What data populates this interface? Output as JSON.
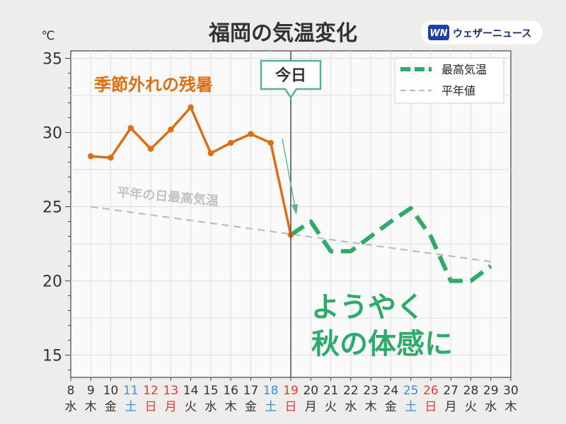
{
  "header": {
    "title": "福岡の気温変化",
    "brand": "ウェザーニュース",
    "logo_mark": "WN"
  },
  "colors": {
    "observed": "#de6e12",
    "forecast": "#2eaa6a",
    "normal": "#bdbdbd",
    "saturday": "#3b8fd9",
    "holiday": "#e03c3c",
    "weekday": "#333333"
  },
  "chart_data": {
    "type": "line",
    "unit_label": "℃",
    "ylim": [
      13.5,
      35.5
    ],
    "yticks": [
      15,
      20,
      25,
      30,
      35
    ],
    "xlim": [
      8,
      30
    ],
    "grid": true,
    "legend_position": "top-right",
    "x_days": [
      {
        "day": "8",
        "dow": "水",
        "kind": "weekday"
      },
      {
        "day": "9",
        "dow": "木",
        "kind": "weekday"
      },
      {
        "day": "10",
        "dow": "金",
        "kind": "weekday"
      },
      {
        "day": "11",
        "dow": "土",
        "kind": "saturday"
      },
      {
        "day": "12",
        "dow": "日",
        "kind": "holiday"
      },
      {
        "day": "13",
        "dow": "月",
        "kind": "holiday"
      },
      {
        "day": "14",
        "dow": "火",
        "kind": "weekday"
      },
      {
        "day": "15",
        "dow": "水",
        "kind": "weekday"
      },
      {
        "day": "16",
        "dow": "木",
        "kind": "weekday"
      },
      {
        "day": "17",
        "dow": "金",
        "kind": "weekday"
      },
      {
        "day": "18",
        "dow": "土",
        "kind": "saturday"
      },
      {
        "day": "19",
        "dow": "日",
        "kind": "holiday"
      },
      {
        "day": "20",
        "dow": "月",
        "kind": "weekday"
      },
      {
        "day": "21",
        "dow": "火",
        "kind": "weekday"
      },
      {
        "day": "22",
        "dow": "水",
        "kind": "weekday"
      },
      {
        "day": "23",
        "dow": "木",
        "kind": "weekday"
      },
      {
        "day": "24",
        "dow": "金",
        "kind": "weekday"
      },
      {
        "day": "25",
        "dow": "土",
        "kind": "saturday"
      },
      {
        "day": "26",
        "dow": "日",
        "kind": "holiday"
      },
      {
        "day": "27",
        "dow": "月",
        "kind": "weekday"
      },
      {
        "day": "28",
        "dow": "火",
        "kind": "weekday"
      },
      {
        "day": "29",
        "dow": "水",
        "kind": "weekday"
      },
      {
        "day": "30",
        "dow": "木",
        "kind": "weekday"
      }
    ],
    "series": [
      {
        "key": "observed",
        "x": [
          9,
          10,
          11,
          12,
          13,
          14,
          15,
          16,
          17,
          18,
          19
        ],
        "y": [
          28.4,
          28.3,
          30.3,
          28.9,
          30.2,
          31.7,
          28.6,
          29.3,
          29.9,
          29.3,
          23.1
        ]
      },
      {
        "key": "forecast",
        "name": "最高気温",
        "x": [
          19,
          20,
          21,
          22,
          23,
          24,
          25,
          26,
          27,
          28,
          29
        ],
        "y": [
          23.1,
          24.0,
          22.0,
          22.0,
          23.0,
          24.0,
          24.9,
          23.0,
          20.0,
          20.0,
          21.0
        ]
      },
      {
        "key": "normal",
        "name": "平年値",
        "x": [
          9,
          29
        ],
        "y": [
          25.0,
          21.3
        ]
      }
    ],
    "today_x": 19,
    "today_label": "今日",
    "annotations": {
      "observed_note": "季節外れの残暑",
      "normal_note": "平年の日最高気温",
      "forecast_note_line1": "ようやく",
      "forecast_note_line2": "秋の体感に"
    }
  }
}
